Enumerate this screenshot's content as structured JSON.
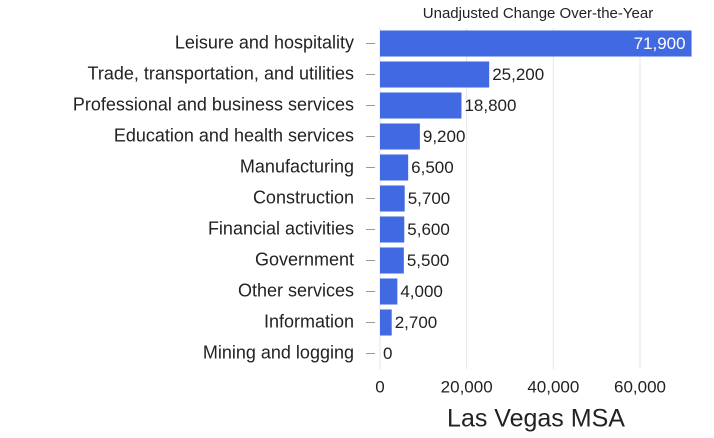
{
  "chart_data": {
    "type": "hbar",
    "title": "Unadjusted Change Over-the-Year",
    "x_label": "Las Vegas MSA",
    "categories": [
      "Leisure and hospitality",
      "Trade, transportation, and utilities",
      "Professional and business services",
      "Education and health services",
      "Manufacturing",
      "Construction",
      "Financial activities",
      "Government",
      "Other services",
      "Information",
      "Mining and logging"
    ],
    "values": [
      71900,
      25200,
      18800,
      9200,
      6500,
      5700,
      5600,
      5500,
      4000,
      2700,
      0
    ],
    "value_labels": [
      "71,900",
      "25,200",
      "18,800",
      "9,200",
      "6,500",
      "5,700",
      "5,600",
      "5,500",
      "4,000",
      "2,700",
      "0"
    ],
    "color": "#4169e1",
    "xlim": [
      0,
      72000
    ],
    "xticks": [
      0,
      {
        "value": 20000,
        "label": "20,000"
      },
      {
        "value": 40000,
        "label": "40,000"
      },
      {
        "value": 60000,
        "label": "60,000"
      }
    ],
    "grid": true
  }
}
